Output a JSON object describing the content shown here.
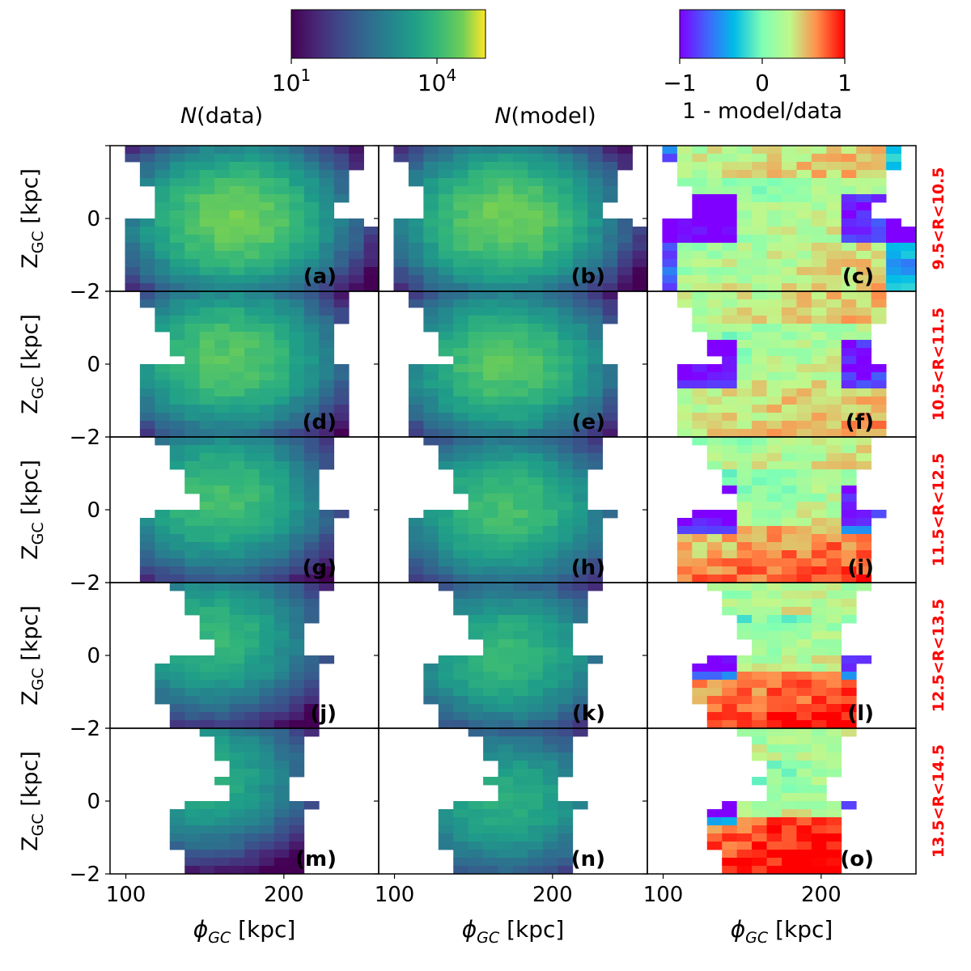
{
  "colorbars": [
    {
      "id": "counts",
      "scale": "log",
      "min_exp": 1,
      "max_exp": 5,
      "tick_labels": [
        {
          "base": "10",
          "exp": "1",
          "value": 1
        },
        {
          "base": "10",
          "exp": "4",
          "value": 4
        }
      ],
      "title_italic": "N",
      "title_rest": "(data)"
    },
    {
      "id": "ratio",
      "scale": "linear",
      "min": -1,
      "max": 1,
      "tick_labels": [
        {
          "label": "−1",
          "value": -1
        },
        {
          "label": "0",
          "value": 0
        },
        {
          "label": "1",
          "value": 1
        }
      ],
      "title": "1 - model/data"
    }
  ],
  "column_titles": [
    {
      "italic": "N",
      "rest": "(data)"
    },
    {
      "italic": "N",
      "rest": "(model)"
    },
    {
      "italic": "",
      "rest": ""
    }
  ],
  "axes": {
    "ylabel_main": "Z",
    "ylabel_sub": "GC",
    "ylabel_unit": " [kpc]",
    "xlabel_main": "ϕ",
    "xlabel_sub": "GC",
    "xlabel_unit": " [kpc]",
    "xlim": [
      90,
      260
    ],
    "ylim": [
      -2,
      2
    ],
    "xticks": [
      {
        "label": "100",
        "value": 100
      },
      {
        "label": "200",
        "value": 200
      }
    ],
    "yticks": [
      {
        "label": "0",
        "value": 0
      },
      {
        "label": "−2",
        "value": -2
      }
    ]
  },
  "chart_data": {
    "type": "heatmap",
    "x_range": [
      90,
      260
    ],
    "y_range": [
      -2,
      2
    ],
    "row_labels": [
      "9.5<R<10.5",
      "10.5<R<11.5",
      "11.5<R<12.5",
      "12.5<R<13.5",
      "13.5<R<14.5"
    ],
    "panels": [
      [
        "(a)",
        "(b)",
        "(c)"
      ],
      [
        "(d)",
        "(e)",
        "(f)"
      ],
      [
        "(g)",
        "(h)",
        "(i)"
      ],
      [
        "(j)",
        "(k)",
        "(l)"
      ],
      [
        "(m)",
        "(n)",
        "(o)"
      ]
    ],
    "columns": [
      "N(data)",
      "N(model)",
      "1 - model/data"
    ],
    "color_scales": [
      "viridis log10 1..5",
      "viridis log10 1..5",
      "rainbow -1..1"
    ]
  },
  "colors": {
    "row_label": "#ff0000"
  }
}
